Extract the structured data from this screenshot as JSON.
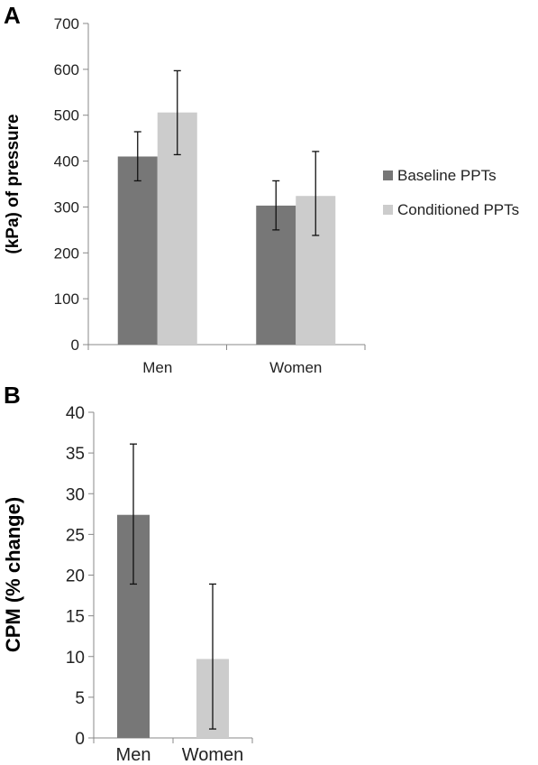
{
  "chart_data": [
    {
      "panel": "A",
      "type": "bar",
      "categories": [
        "Men",
        "Women"
      ],
      "series": [
        {
          "name": "Baseline PPTs",
          "color": "#777777",
          "values": [
            410,
            303
          ],
          "err_low": [
            357,
            250
          ],
          "err_high": [
            464,
            357
          ]
        },
        {
          "name": "Conditioned PPTs",
          "color": "#cccccc",
          "values": [
            506,
            324
          ],
          "err_low": [
            414,
            238
          ],
          "err_high": [
            597,
            421
          ]
        }
      ],
      "ylabel": "(kPa) of pressure",
      "ylim": [
        0,
        700
      ],
      "yticks": [
        0,
        100,
        200,
        300,
        400,
        500,
        600,
        700
      ],
      "grid": false,
      "legend": "right"
    },
    {
      "panel": "B",
      "type": "bar",
      "categories": [
        "Men",
        "Women"
      ],
      "values": [
        27.4,
        9.7
      ],
      "err_low": [
        18.9,
        1.1
      ],
      "err_high": [
        36.1,
        18.9
      ],
      "colors": [
        "#777777",
        "#cccccc"
      ],
      "ylabel": "CPM (% change)",
      "ylim": [
        0,
        40
      ],
      "yticks": [
        0,
        5,
        10,
        15,
        20,
        25,
        30,
        35,
        40
      ],
      "grid": false
    }
  ]
}
